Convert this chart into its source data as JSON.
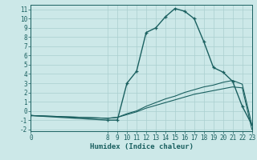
{
  "xlabel": "Humidex (Indice chaleur)",
  "bg_color": "#cce8e8",
  "grid_color": "#aacfcf",
  "line_color": "#1a6060",
  "xlim": [
    0,
    23
  ],
  "ylim": [
    -2.2,
    11.5
  ],
  "yticks": [
    -2,
    -1,
    0,
    1,
    2,
    3,
    4,
    5,
    6,
    7,
    8,
    9,
    10,
    11
  ],
  "xticks": [
    0,
    8,
    9,
    10,
    11,
    12,
    13,
    14,
    15,
    16,
    17,
    18,
    19,
    20,
    21,
    22,
    23
  ],
  "main_x": [
    0,
    8,
    9,
    10,
    11,
    12,
    13,
    14,
    15,
    16,
    17,
    18,
    19,
    20,
    21,
    22,
    23
  ],
  "main_y": [
    -0.5,
    -1.0,
    -1.0,
    3.0,
    4.3,
    8.5,
    9.0,
    10.2,
    11.1,
    10.8,
    10.0,
    7.5,
    4.7,
    4.2,
    3.2,
    0.5,
    -1.5
  ],
  "line2_x": [
    0,
    8,
    9,
    10,
    11,
    12,
    13,
    14,
    15,
    16,
    17,
    18,
    19,
    20,
    21,
    22,
    23
  ],
  "line2_y": [
    -0.5,
    -0.8,
    -0.7,
    -0.4,
    -0.1,
    0.3,
    0.6,
    0.9,
    1.2,
    1.5,
    1.8,
    2.0,
    2.2,
    2.4,
    2.6,
    2.5,
    -2.0
  ],
  "line3_x": [
    0,
    8,
    9,
    10,
    11,
    12,
    13,
    14,
    15,
    16,
    17,
    18,
    19,
    20,
    21,
    22,
    23
  ],
  "line3_y": [
    -0.5,
    -0.8,
    -0.7,
    -0.3,
    0.0,
    0.5,
    0.9,
    1.3,
    1.6,
    2.0,
    2.3,
    2.6,
    2.8,
    3.1,
    3.3,
    2.9,
    -1.5
  ],
  "tick_fontsize": 5.5,
  "label_fontsize": 6.5
}
